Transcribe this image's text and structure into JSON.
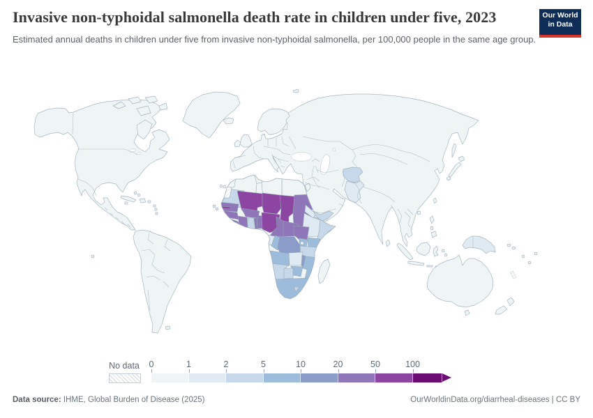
{
  "header": {
    "title": "Invasive non-typhoidal salmonella death rate in children under five, 2023",
    "subtitle": "Estimated annual deaths in children under five from invasive non-typhoidal salmonella, per 100,000 people in the same age group.",
    "logo_line1": "Our World",
    "logo_line2": "in Data"
  },
  "colors": {
    "bin0": "#eef5f4",
    "bin1": "#dfeaf3",
    "bin2": "#c6d8ea",
    "bin3": "#9dbbda",
    "bin4": "#8b9cc8",
    "bin5": "#8e76b8",
    "bin6": "#8c46a2",
    "bin7": "#6b0d72",
    "land_stroke": "#a6b5c0",
    "hatch_line": "#c9d2d8",
    "logo_bg": "#0f2e57",
    "logo_red": "#d8352a"
  },
  "legend": {
    "no_data_label": "No data",
    "tick_labels": [
      "0",
      "1",
      "2",
      "5",
      "10",
      "20",
      "50",
      "100"
    ],
    "bin_ranges": [
      "0-1",
      "1-2",
      "2-5",
      "5-10",
      "10-20",
      "20-50",
      "50-100",
      "100plus"
    ],
    "bin_colors": [
      "#eef5f4",
      "#dfeaf3",
      "#c6d8ea",
      "#9dbbda",
      "#8b9cc8",
      "#8e76b8",
      "#8c46a2",
      "#6b0d72"
    ]
  },
  "footer": {
    "source_label": "Data source:",
    "source_value": " IHME, Global Burden of Disease (2025)",
    "right_text": "OurWorldinData.org/diarrheal-diseases | CC BY"
  },
  "chart_data": {
    "type": "heatmap",
    "subtype": "world-choropleth-map",
    "title": "Invasive non-typhoidal salmonella death rate in children under five, 2023",
    "unit": "deaths per 100,000 children under five",
    "year": "2023",
    "legend_bins": [
      "0-1",
      "1-2",
      "2-5",
      "5-10",
      "10-20",
      "20-50",
      "50-100",
      "100+"
    ],
    "legend_scale": "logarithmic-binned",
    "regions_by_bin": {
      "no_data": [
        "Western Sahara",
        "New Caledonia"
      ],
      "100+": [],
      "50-100": [
        "Mali",
        "Niger",
        "Chad",
        "Nigeria",
        "Gambia"
      ],
      "20-50": [
        "Senegal",
        "Guinea",
        "Guinea-Bissau",
        "Sierra Leone",
        "Liberia",
        "Cote d'Ivoire",
        "Togo",
        "Benin",
        "Burkina Faso",
        "Cameroon",
        "Central African Republic",
        "Sudan",
        "South Sudan"
      ],
      "10-20": [
        "Democratic Republic of Congo",
        "Malawi"
      ],
      "5-10": [
        "Kenya",
        "Uganda",
        "Congo",
        "Angola",
        "Mozambique",
        "Zimbabwe",
        "South Africa"
      ],
      "2-5": [
        "Mauritania",
        "Ghana",
        "Somalia",
        "Djibouti",
        "Tanzania",
        "Botswana",
        "Namibia",
        "Lesotho",
        "Afghanistan",
        "Yemen"
      ],
      "1-2": [
        "Ethiopia",
        "Eritrea",
        "Gabon",
        "Equatorial Guinea",
        "Zambia",
        "Pakistan",
        "Papua New Guinea",
        "Cape Verde"
      ],
      "0-1": [
        "Madagascar",
        "Morocco",
        "Algeria",
        "Tunisia",
        "Libya",
        "Egypt",
        "and most other countries of the Americas, Europe, Asia and Oceania"
      ]
    }
  }
}
